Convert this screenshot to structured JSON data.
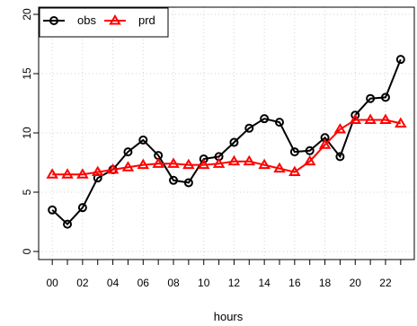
{
  "chart_data": {
    "type": "line",
    "title": "",
    "xlabel": "hours",
    "ylabel": "",
    "x": [
      0,
      1,
      2,
      3,
      4,
      5,
      6,
      7,
      8,
      9,
      10,
      11,
      12,
      13,
      14,
      15,
      16,
      17,
      18,
      19,
      20,
      21,
      22,
      23
    ],
    "x_tick_values": [
      0,
      2,
      4,
      6,
      8,
      10,
      12,
      14,
      16,
      18,
      20,
      22
    ],
    "x_tick_labels": [
      "00",
      "02",
      "04",
      "06",
      "08",
      "10",
      "12",
      "14",
      "16",
      "18",
      "20",
      "22"
    ],
    "y_tick_values": [
      0,
      5,
      10,
      15,
      20
    ],
    "y_tick_labels": [
      "0",
      "5",
      "10",
      "15",
      "20"
    ],
    "xlim": [
      -0.9,
      23.9
    ],
    "ylim": [
      0,
      20
    ],
    "grid": true,
    "legend_position": "top-left",
    "series": [
      {
        "name": "obs",
        "color": "#000000",
        "marker": "circle",
        "values": [
          3.5,
          2.3,
          3.7,
          6.2,
          6.9,
          8.4,
          9.4,
          8.1,
          6.0,
          5.8,
          7.8,
          8.0,
          9.2,
          10.4,
          11.2,
          10.9,
          8.4,
          8.5,
          9.6,
          8.0,
          11.5,
          12.9,
          13.0,
          16.2
        ]
      },
      {
        "name": "prd",
        "color": "#ff0000",
        "marker": "triangle",
        "values": [
          6.5,
          6.5,
          6.5,
          6.7,
          6.9,
          7.1,
          7.3,
          7.4,
          7.4,
          7.3,
          7.3,
          7.4,
          7.6,
          7.6,
          7.3,
          7.0,
          6.7,
          7.6,
          9.0,
          10.3,
          11.1,
          11.1,
          11.1,
          10.8
        ]
      }
    ]
  }
}
